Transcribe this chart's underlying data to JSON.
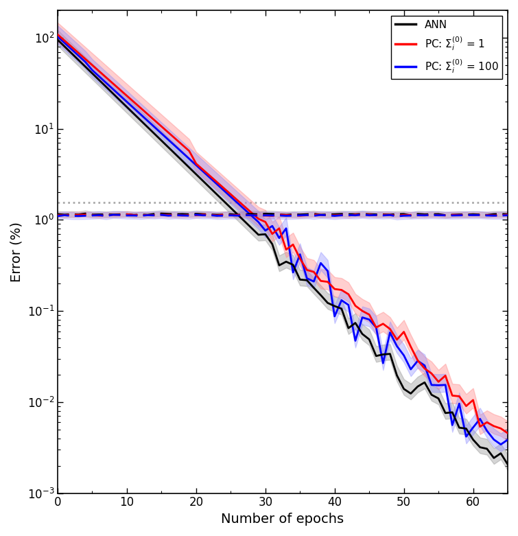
{
  "title": "",
  "xlabel": "Number of epochs",
  "ylabel": "Error (%)",
  "xlim": [
    0,
    65
  ],
  "ylim_bottom": 0.001,
  "ylim_top": 200,
  "reference_line_y": 1.55,
  "reference_line_color": "#aaaaaa",
  "ann_color": "#000000",
  "pc1_color": "#ff0000",
  "pc100_color": "#0000ff",
  "ann_shade_color": "#888888",
  "pc1_shade_color": "#ff8888",
  "pc100_shade_color": "#8888ff",
  "ann_label": "ANN",
  "pc1_label": "PC: $\\Sigma_i^{(0)}$ = 1",
  "pc100_label": "PC: $\\Sigma_i^{(0)}$ = 100",
  "legend_loc": "upper right",
  "figsize": [
    7.55,
    7.81
  ],
  "dpi": 100,
  "test_error_ann": 1.15,
  "test_error_pc1": 1.13,
  "test_error_pc100": 1.12
}
